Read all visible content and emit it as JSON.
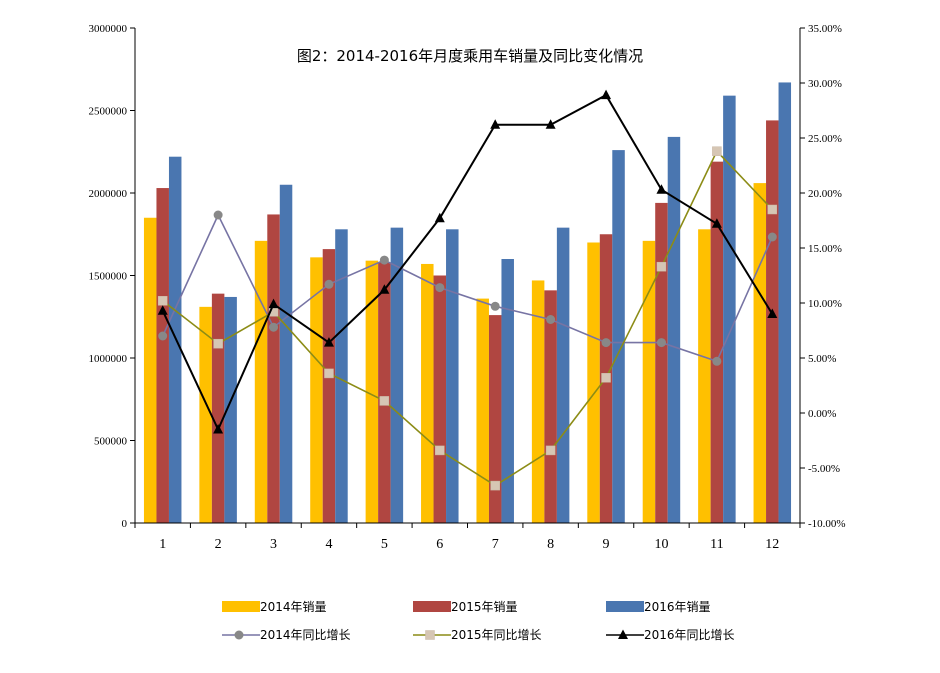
{
  "chart_data": {
    "type": "bar",
    "title": "图2：2014-2016年月度乘用车销量及同比变化情况",
    "categories": [
      "1",
      "2",
      "3",
      "4",
      "5",
      "6",
      "7",
      "8",
      "9",
      "10",
      "11",
      "12"
    ],
    "y_left": {
      "ylim": [
        0,
        3000000
      ],
      "ticks": [
        0,
        500000,
        1000000,
        1500000,
        2000000,
        2500000,
        3000000
      ],
      "tick_labels": [
        "0",
        "500000",
        "1000000",
        "1500000",
        "2000000",
        "2500000",
        "3000000"
      ]
    },
    "y_right": {
      "ylim": [
        -10,
        35
      ],
      "ticks": [
        -10,
        -5,
        0,
        5,
        10,
        15,
        20,
        25,
        30,
        35
      ],
      "tick_labels": [
        "-10.00%",
        "-5.00%",
        "0.00%",
        "5.00%",
        "10.00%",
        "15.00%",
        "20.00%",
        "25.00%",
        "30.00%",
        "35.00%"
      ]
    },
    "bar_series": [
      {
        "name": "2014年销量",
        "color": "#FFC000",
        "values": [
          1850000,
          1310000,
          1710000,
          1610000,
          1590000,
          1570000,
          1360000,
          1470000,
          1700000,
          1710000,
          1780000,
          2060000
        ]
      },
      {
        "name": "2015年销量",
        "color": "#B04641",
        "values": [
          2030000,
          1390000,
          1870000,
          1660000,
          1580000,
          1500000,
          1260000,
          1410000,
          1750000,
          1940000,
          2190000,
          2440000
        ]
      },
      {
        "name": "2016年销量",
        "color": "#4A76B0",
        "values": [
          2220000,
          1370000,
          2050000,
          1780000,
          1790000,
          1780000,
          1600000,
          1790000,
          2260000,
          2340000,
          2590000,
          2670000
        ]
      }
    ],
    "line_series": [
      {
        "name": "2014年同比增长",
        "color": "#7774A4",
        "marker": "circle",
        "marker_color": "#888888",
        "values": [
          7.0,
          18.0,
          7.8,
          11.7,
          13.9,
          11.4,
          9.7,
          8.5,
          6.4,
          6.4,
          4.7,
          16.0
        ]
      },
      {
        "name": "2015年同比增长",
        "color": "#8C8C16",
        "marker": "square",
        "marker_color": "#D6C6B4",
        "values": [
          10.2,
          6.3,
          9.2,
          3.6,
          1.1,
          -3.4,
          -6.6,
          -3.4,
          3.2,
          13.3,
          23.8,
          18.5
        ]
      },
      {
        "name": "2016年同比增长",
        "color": "#000000",
        "marker": "triangle",
        "marker_color": "#000000",
        "values": [
          9.3,
          -1.5,
          9.9,
          6.4,
          11.2,
          17.7,
          26.2,
          26.2,
          28.9,
          20.3,
          17.2,
          9.0
        ]
      }
    ],
    "grid": false,
    "legend_position": "bottom"
  }
}
